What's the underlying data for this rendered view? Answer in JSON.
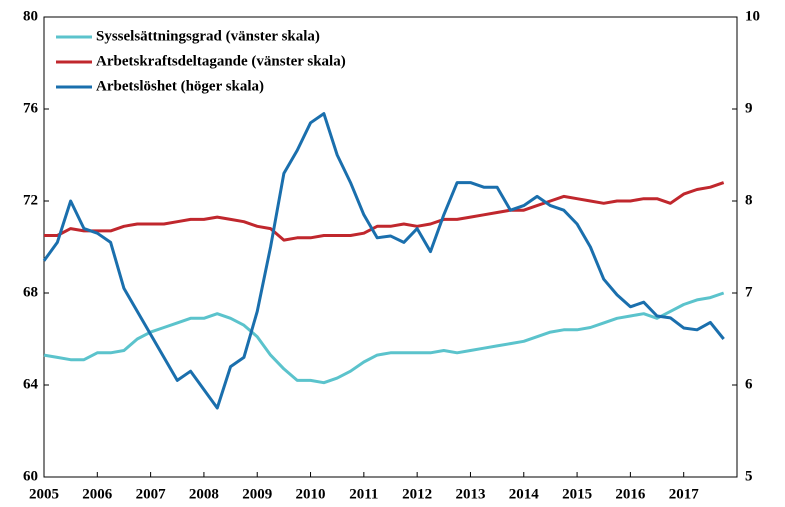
{
  "chart_data": {
    "type": "line",
    "x": [
      2005,
      2005.25,
      2005.5,
      2005.75,
      2006,
      2006.25,
      2006.5,
      2006.75,
      2007,
      2007.25,
      2007.5,
      2007.75,
      2008,
      2008.25,
      2008.5,
      2008.75,
      2009,
      2009.25,
      2009.5,
      2009.75,
      2010,
      2010.25,
      2010.5,
      2010.75,
      2011,
      2011.25,
      2011.5,
      2011.75,
      2012,
      2012.25,
      2012.5,
      2012.75,
      2013,
      2013.25,
      2013.5,
      2013.75,
      2014,
      2014.25,
      2014.5,
      2014.75,
      2015,
      2015.25,
      2015.5,
      2015.75,
      2016,
      2016.25,
      2016.5,
      2016.75,
      2017,
      2017.25,
      2017.5,
      2017.75
    ],
    "series": [
      {
        "name": "Sysselsättningsgrad (vänster skala)",
        "color": "#5bc3cc",
        "values": [
          65.3,
          65.2,
          65.1,
          65.1,
          65.4,
          65.4,
          65.5,
          66.0,
          66.3,
          66.5,
          66.7,
          66.9,
          66.9,
          67.1,
          66.9,
          66.6,
          66.1,
          65.3,
          64.7,
          64.2,
          64.2,
          64.1,
          64.3,
          64.6,
          65.0,
          65.3,
          65.4,
          65.4,
          65.4,
          65.4,
          65.5,
          65.4,
          65.5,
          65.6,
          65.7,
          65.8,
          65.9,
          66.1,
          66.3,
          66.4,
          66.4,
          66.5,
          66.7,
          66.9,
          67.0,
          67.1,
          66.9,
          67.2,
          67.5,
          67.7,
          67.8,
          68.0
        ]
      },
      {
        "name": "Arbetskraftsdeltagande (vänster skala)",
        "color": "#c0272d",
        "values": [
          70.5,
          70.5,
          70.8,
          70.7,
          70.7,
          70.7,
          70.9,
          71.0,
          71.0,
          71.0,
          71.1,
          71.2,
          71.2,
          71.3,
          71.2,
          71.1,
          70.9,
          70.8,
          70.3,
          70.4,
          70.4,
          70.5,
          70.5,
          70.5,
          70.6,
          70.9,
          70.9,
          71.0,
          70.9,
          71.0,
          71.2,
          71.2,
          71.3,
          71.4,
          71.5,
          71.6,
          71.6,
          71.8,
          72.0,
          72.2,
          72.1,
          72.0,
          71.9,
          72.0,
          72.0,
          72.1,
          72.1,
          71.9,
          72.3,
          72.5,
          72.6,
          72.8
        ]
      },
      {
        "name": "Arbetslöshet (höger skala)",
        "color": "#1a6fad",
        "axis": "y2",
        "values": [
          7.35,
          7.55,
          8.0,
          7.7,
          7.65,
          7.55,
          7.05,
          6.8,
          6.55,
          6.3,
          6.05,
          6.15,
          5.95,
          5.75,
          6.2,
          6.3,
          6.8,
          7.5,
          8.3,
          8.55,
          8.85,
          8.95,
          8.5,
          8.2,
          7.85,
          7.6,
          7.62,
          7.55,
          7.7,
          7.45,
          7.85,
          8.2,
          8.2,
          8.15,
          8.15,
          7.9,
          7.95,
          8.05,
          7.95,
          7.9,
          7.75,
          7.5,
          7.15,
          6.98,
          6.85,
          6.9,
          6.75,
          6.73,
          6.62,
          6.6,
          6.68,
          6.5
        ]
      }
    ],
    "xlim": [
      2005,
      2018
    ],
    "xticks": [
      2005,
      2006,
      2007,
      2008,
      2009,
      2010,
      2011,
      2012,
      2013,
      2014,
      2015,
      2016,
      2017
    ],
    "ylim": [
      60,
      80
    ],
    "yticks": [
      60,
      64,
      68,
      72,
      76,
      80
    ],
    "y2lim": [
      5,
      10
    ],
    "y2ticks": [
      5,
      6,
      7,
      8,
      9,
      10
    ],
    "legend": "top-left"
  }
}
